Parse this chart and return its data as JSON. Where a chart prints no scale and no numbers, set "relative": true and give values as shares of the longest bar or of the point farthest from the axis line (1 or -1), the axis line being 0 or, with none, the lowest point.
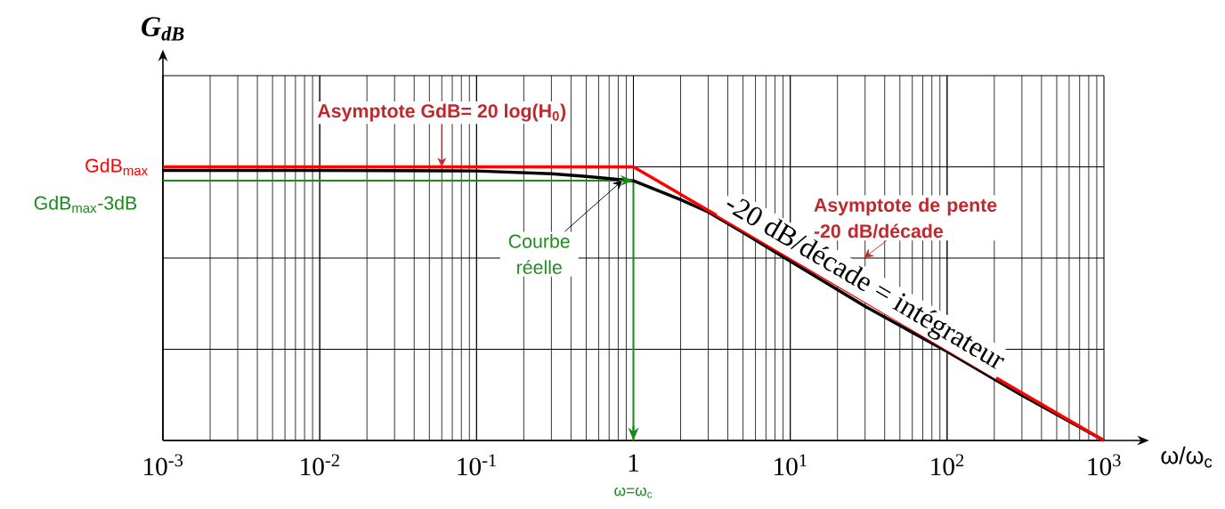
{
  "chart_data": {
    "type": "line",
    "relative": true,
    "log": "x",
    "grid": true,
    "xlabel": "ω/ω$_{c}$",
    "ylabel": "G$_{dB}$",
    "xlim": [
      0.001,
      1000
    ],
    "xticks": [
      {
        "value": 0.001,
        "label": "10$^{-3}$"
      },
      {
        "value": 0.01,
        "label": "10$^{-2}$"
      },
      {
        "value": 0.1,
        "label": "10$^{-1}$"
      },
      1,
      {
        "value": 10,
        "label": "10$^{1}$"
      },
      {
        "value": 100,
        "label": "10$^{2}$"
      },
      {
        "value": 1000,
        "label": "10$^{3}$"
      }
    ],
    "series": [
      {
        "color": "#000000",
        "x": [
          0.001,
          0.01,
          0.1,
          0.3,
          0.5,
          1,
          2,
          3,
          5,
          10,
          30,
          100,
          300,
          1000
        ],
        "values": [
          0.987,
          0.987,
          0.985,
          0.975,
          0.965,
          0.949,
          0.88,
          0.835,
          0.76,
          0.655,
          0.49,
          0.325,
          0.165,
          0
        ]
      },
      {
        "color": "#ff0000",
        "x": [
          0.001,
          1,
          1000
        ],
        "values": [
          1,
          1,
          0
        ]
      }
    ],
    "ref_lines": [
      {
        "axis": "y",
        "value": 0.95,
        "label": "GdB$_{max}$-3dB",
        "color": "#1a8a1a"
      },
      {
        "axis": "x",
        "value": 1,
        "label": "ω=ω$_{c}$",
        "color": "#1a8a1a"
      }
    ],
    "annotations": [
      {
        "text": "GdB$_{max}$",
        "x": 0.001,
        "y": 1
      },
      {
        "text": "Asymptote GdB= 20 log(H$_{0}$)",
        "x": 0.06,
        "y": 1
      },
      {
        "text": "Courbe réelle",
        "x": 0.85,
        "y": 0.95
      },
      "Asymptote de pente -20 dB/décade",
      "-20 dB/décade = intégrateur"
    ]
  }
}
